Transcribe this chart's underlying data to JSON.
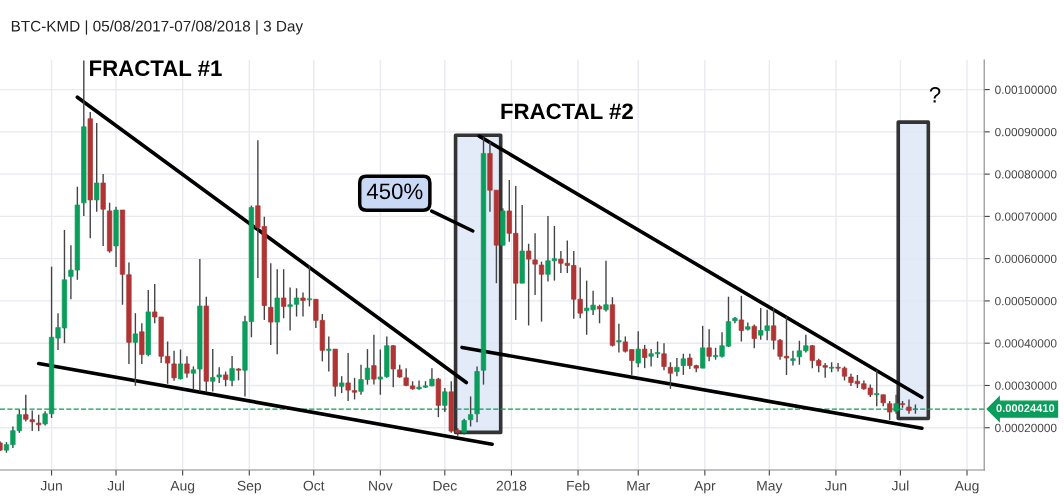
{
  "chart_data": {
    "type": "candlestick",
    "title": "BTC-KMD | 05/08/2017-07/08/2018 | 3 Day",
    "x": [
      "2017-05-08",
      "2017-05-11",
      "2017-05-14",
      "2017-05-17",
      "2017-05-20",
      "2017-05-23",
      "2017-05-26",
      "2017-05-29",
      "2017-06-01",
      "2017-06-04",
      "2017-06-07",
      "2017-06-10",
      "2017-06-13",
      "2017-06-16",
      "2017-06-19",
      "2017-06-22",
      "2017-06-25",
      "2017-06-28",
      "2017-07-01",
      "2017-07-04",
      "2017-07-07",
      "2017-07-10",
      "2017-07-13",
      "2017-07-16",
      "2017-07-19",
      "2017-07-22",
      "2017-07-25",
      "2017-07-28",
      "2017-07-31",
      "2017-08-03",
      "2017-08-06",
      "2017-08-09",
      "2017-08-12",
      "2017-08-15",
      "2017-08-18",
      "2017-08-21",
      "2017-08-24",
      "2017-08-27",
      "2017-08-30",
      "2017-09-02",
      "2017-09-05",
      "2017-09-08",
      "2017-09-11",
      "2017-09-14",
      "2017-09-17",
      "2017-09-20",
      "2017-09-23",
      "2017-09-26",
      "2017-09-29",
      "2017-10-02",
      "2017-10-05",
      "2017-10-08",
      "2017-10-11",
      "2017-10-14",
      "2017-10-17",
      "2017-10-20",
      "2017-10-23",
      "2017-10-26",
      "2017-10-29",
      "2017-11-01",
      "2017-11-04",
      "2017-11-07",
      "2017-11-10",
      "2017-11-13",
      "2017-11-16",
      "2017-11-19",
      "2017-11-22",
      "2017-11-25",
      "2017-11-28",
      "2017-12-01",
      "2017-12-04",
      "2017-12-07",
      "2017-12-10",
      "2017-12-13",
      "2017-12-16",
      "2017-12-19",
      "2017-12-22",
      "2017-12-25",
      "2017-12-28",
      "2017-12-31",
      "2018-01-03",
      "2018-01-06",
      "2018-01-09",
      "2018-01-12",
      "2018-01-15",
      "2018-01-18",
      "2018-01-21",
      "2018-01-24",
      "2018-01-27",
      "2018-01-30",
      "2018-02-02",
      "2018-02-05",
      "2018-02-08",
      "2018-02-11",
      "2018-02-14",
      "2018-02-17",
      "2018-02-20",
      "2018-02-23",
      "2018-02-26",
      "2018-03-01",
      "2018-03-04",
      "2018-03-07",
      "2018-03-10",
      "2018-03-13",
      "2018-03-16",
      "2018-03-19",
      "2018-03-22",
      "2018-03-25",
      "2018-03-28",
      "2018-03-31",
      "2018-04-03",
      "2018-04-06",
      "2018-04-09",
      "2018-04-12",
      "2018-04-15",
      "2018-04-18",
      "2018-04-21",
      "2018-04-24",
      "2018-04-27",
      "2018-04-30",
      "2018-05-03",
      "2018-05-06",
      "2018-05-09",
      "2018-05-12",
      "2018-05-15",
      "2018-05-18",
      "2018-05-21",
      "2018-05-24",
      "2018-05-27",
      "2018-05-30",
      "2018-06-02",
      "2018-06-05",
      "2018-06-08",
      "2018-06-11",
      "2018-06-14",
      "2018-06-17",
      "2018-06-20",
      "2018-06-23",
      "2018-06-26",
      "2018-06-29",
      "2018-07-02",
      "2018-07-05",
      "2018-07-08"
    ],
    "ohlc": [
      [
        0.000164,
        0.000168,
        0.000145,
        0.000147
      ],
      [
        0.000147,
        0.000166,
        0.000141,
        0.00016
      ],
      [
        0.00016,
        0.000203,
        0.000152,
        0.000193
      ],
      [
        0.000193,
        0.000243,
        0.000188,
        0.000231
      ],
      [
        0.000231,
        0.000278,
        0.000215,
        0.00022
      ],
      [
        0.000219,
        0.000241,
        0.000192,
        0.000214
      ],
      [
        0.000211,
        0.000231,
        0.000192,
        0.000207
      ],
      [
        0.000209,
        0.000239,
        0.000205,
        0.000233
      ],
      [
        0.000233,
        0.000581,
        0.000223,
        0.000414
      ],
      [
        0.000412,
        0.000471,
        0.000384,
        0.000437
      ],
      [
        0.000436,
        0.000668,
        0.0004,
        0.00055
      ],
      [
        0.000558,
        0.000632,
        0.000504,
        0.000573
      ],
      [
        0.000573,
        0.00077,
        0.00055,
        0.000727
      ],
      [
        0.000732,
        0.001069,
        0.000701,
        0.000912
      ],
      [
        0.000931,
        0.000947,
        0.000648,
        0.000739
      ],
      [
        0.000739,
        0.000921,
        0.000711,
        0.000779
      ],
      [
        0.000779,
        0.0008,
        0.00063,
        0.000717
      ],
      [
        0.000713,
        0.000732,
        0.000614,
        0.000618
      ],
      [
        0.00063,
        0.000723,
        0.00058,
        0.000715
      ],
      [
        0.000715,
        0.000715,
        0.000491,
        0.000563
      ],
      [
        0.000562,
        0.000591,
        0.000351,
        0.000402
      ],
      [
        0.000402,
        0.000471,
        0.000299,
        0.000422
      ],
      [
        0.000427,
        0.000447,
        0.000351,
        0.000373
      ],
      [
        0.000373,
        0.000526,
        0.000369,
        0.000474
      ],
      [
        0.000474,
        0.00054,
        0.000447,
        0.000462
      ],
      [
        0.000462,
        0.000462,
        0.000353,
        0.000369
      ],
      [
        0.000369,
        0.000404,
        0.000304,
        0.000353
      ],
      [
        0.000351,
        0.000382,
        0.000311,
        0.000318
      ],
      [
        0.000316,
        0.000385,
        0.000314,
        0.000351
      ],
      [
        0.000351,
        0.000369,
        0.000318,
        0.000329
      ],
      [
        0.000329,
        0.000345,
        0.00029,
        0.000337
      ],
      [
        0.000339,
        0.000599,
        0.000286,
        0.000488
      ],
      [
        0.000488,
        0.00051,
        0.000284,
        0.00031
      ],
      [
        0.00031,
        0.000386,
        0.000286,
        0.000319
      ],
      [
        0.00032,
        0.000343,
        0.000306,
        0.000325
      ],
      [
        0.000325,
        0.000333,
        0.000298,
        0.000314
      ],
      [
        0.000312,
        0.00037,
        0.000298,
        0.00034
      ],
      [
        0.000339,
        0.000341,
        0.000312,
        0.000336
      ],
      [
        0.000336,
        0.000465,
        0.000274,
        0.000451
      ],
      [
        0.000451,
        0.000726,
        0.000414,
        0.000721
      ],
      [
        0.000725,
        0.00088,
        0.000554,
        0.000674
      ],
      [
        0.000676,
        0.000699,
        0.000455,
        0.000489
      ],
      [
        0.000485,
        0.000589,
        0.000396,
        0.00045
      ],
      [
        0.00045,
        0.000575,
        0.000374,
        0.000507
      ],
      [
        0.000507,
        0.000575,
        0.000459,
        0.000487
      ],
      [
        0.000487,
        0.000532,
        0.00043,
        0.000491
      ],
      [
        0.000492,
        0.00053,
        0.000463,
        0.000507
      ],
      [
        0.000507,
        0.00052,
        0.000463,
        0.000501
      ],
      [
        0.000503,
        0.000585,
        0.000487,
        0.000505
      ],
      [
        0.000504,
        0.000504,
        0.000436,
        0.000454
      ],
      [
        0.000454,
        0.000469,
        0.000357,
        0.000383
      ],
      [
        0.000383,
        0.000416,
        0.000333,
        0.000386
      ],
      [
        0.000386,
        0.000386,
        0.000274,
        0.000298
      ],
      [
        0.000298,
        0.000322,
        0.000282,
        0.000306
      ],
      [
        0.000306,
        0.000377,
        0.000263,
        0.000289
      ],
      [
        0.000288,
        0.000318,
        0.000267,
        0.000284
      ],
      [
        0.000286,
        0.000349,
        0.000278,
        0.000314
      ],
      [
        0.000314,
        0.000386,
        0.000302,
        0.000341
      ],
      [
        0.000347,
        0.00042,
        0.000302,
        0.000315
      ],
      [
        0.000315,
        0.000385,
        0.000278,
        0.00032
      ],
      [
        0.000321,
        0.000416,
        0.000318,
        0.000394
      ],
      [
        0.000394,
        0.000396,
        0.000296,
        0.000339
      ],
      [
        0.000337,
        0.000349,
        0.000318,
        0.00032
      ],
      [
        0.000318,
        0.000341,
        0.000298,
        0.0003
      ],
      [
        0.000299,
        0.00031,
        0.00029,
        0.000292
      ],
      [
        0.000292,
        0.000312,
        0.00029,
        0.000296
      ],
      [
        0.000296,
        0.00031,
        0.000294,
        0.000299
      ],
      [
        0.000299,
        0.000341,
        0.000298,
        0.000315
      ],
      [
        0.000315,
        0.000318,
        0.000225,
        0.000253
      ],
      [
        0.000253,
        0.000294,
        0.000237,
        0.000285
      ],
      [
        0.000285,
        0.00031,
        0.000188,
        0.000192
      ],
      [
        0.000194,
        0.000199,
        0.000181,
        0.000189
      ],
      [
        0.000189,
        0.000221,
        0.000184,
        0.000217
      ],
      [
        0.000219,
        0.000274,
        0.000203,
        0.000231
      ],
      [
        0.000233,
        0.000345,
        0.000213,
        0.000333
      ],
      [
        0.000336,
        0.000887,
        0.000302,
        0.000849
      ],
      [
        0.000849,
        0.000876,
        0.000711,
        0.000762
      ],
      [
        0.000762,
        0.000762,
        0.000542,
        0.000632
      ],
      [
        0.000632,
        0.000719,
        0.000632,
        0.000713
      ],
      [
        0.000713,
        0.000786,
        0.00064,
        0.00066
      ],
      [
        0.00066,
        0.000772,
        0.000455,
        0.000542
      ],
      [
        0.000542,
        0.000727,
        0.000542,
        0.000618
      ],
      [
        0.000618,
        0.000635,
        0.000442,
        0.000599
      ],
      [
        0.000597,
        0.00066,
        0.000514,
        0.000587
      ],
      [
        0.000585,
        0.000593,
        0.000451,
        0.000563
      ],
      [
        0.000563,
        0.000701,
        0.000546,
        0.000595
      ],
      [
        0.000595,
        0.000677,
        0.000548,
        0.0006
      ],
      [
        0.000599,
        0.000618,
        0.000566,
        0.000589
      ],
      [
        0.000589,
        0.000643,
        0.000566,
        0.000584
      ],
      [
        0.000584,
        0.000618,
        0.000458,
        0.000504
      ],
      [
        0.000504,
        0.000579,
        0.000459,
        0.000471
      ],
      [
        0.000477,
        0.000548,
        0.00042,
        0.000483
      ],
      [
        0.000479,
        0.000524,
        0.000467,
        0.00049
      ],
      [
        0.000487,
        0.000491,
        0.000447,
        0.000481
      ],
      [
        0.000479,
        0.000595,
        0.000475,
        0.000491
      ],
      [
        0.000491,
        0.000509,
        0.000392,
        0.000395
      ],
      [
        0.000403,
        0.000446,
        0.000378,
        0.000406
      ],
      [
        0.000403,
        0.000416,
        0.000378,
        0.000381
      ],
      [
        0.000385,
        0.000385,
        0.000325,
        0.000359
      ],
      [
        0.000353,
        0.000428,
        0.000343,
        0.000386
      ],
      [
        0.000386,
        0.000396,
        0.000341,
        0.000366
      ],
      [
        0.000369,
        0.000386,
        0.000345,
        0.000375
      ],
      [
        0.000375,
        0.000404,
        0.000365,
        0.000378
      ],
      [
        0.000375,
        0.0004,
        0.000336,
        0.000345
      ],
      [
        0.000343,
        0.000355,
        0.000292,
        0.000329
      ],
      [
        0.000333,
        0.000365,
        0.000322,
        0.000343
      ],
      [
        0.000347,
        0.000375,
        0.000325,
        0.000363
      ],
      [
        0.000365,
        0.000375,
        0.000339,
        0.000347
      ],
      [
        0.000347,
        0.000349,
        0.000331,
        0.000341
      ],
      [
        0.000341,
        0.000441,
        0.000341,
        0.000389
      ],
      [
        0.000389,
        0.000433,
        0.000357,
        0.000369
      ],
      [
        0.000368,
        0.000389,
        0.000361,
        0.000371
      ],
      [
        0.000369,
        0.000426,
        0.000366,
        0.000394
      ],
      [
        0.000393,
        0.00051,
        0.000391,
        0.000451
      ],
      [
        0.000453,
        0.000462,
        0.000447,
        0.000459
      ],
      [
        0.000455,
        0.000512,
        0.000404,
        0.00043
      ],
      [
        0.000433,
        0.000449,
        0.00043,
        0.000439
      ],
      [
        0.00044,
        0.000444,
        0.000388,
        0.000411
      ],
      [
        0.000419,
        0.000483,
        0.000408,
        0.00043
      ],
      [
        0.00043,
        0.000479,
        0.000407,
        0.000441
      ],
      [
        0.000441,
        0.000483,
        0.000385,
        0.000407
      ],
      [
        0.000407,
        0.00041,
        0.000361,
        0.000369
      ],
      [
        0.000369,
        0.000463,
        0.000325,
        0.000365
      ],
      [
        0.000359,
        0.000382,
        0.000347,
        0.000363
      ],
      [
        0.000368,
        0.000406,
        0.000349,
        0.000382
      ],
      [
        0.000382,
        0.00042,
        0.000378,
        0.000394
      ],
      [
        0.000394,
        0.000396,
        0.000341,
        0.000359
      ],
      [
        0.000359,
        0.000363,
        0.000331,
        0.000347
      ],
      [
        0.000347,
        0.000353,
        0.000318,
        0.000343
      ],
      [
        0.000341,
        0.000355,
        0.000331,
        0.000343
      ],
      [
        0.000343,
        0.000353,
        0.000333,
        0.000341
      ],
      [
        0.000341,
        0.000345,
        0.000312,
        0.000322
      ],
      [
        0.00032,
        0.000328,
        0.000299,
        0.000307
      ],
      [
        0.00031,
        0.000325,
        0.000294,
        0.000304
      ],
      [
        0.000304,
        0.000312,
        0.00029,
        0.000292
      ],
      [
        0.000294,
        0.000302,
        0.000273,
        0.000278
      ],
      [
        0.000278,
        0.000336,
        0.000251,
        0.000281
      ],
      [
        0.000278,
        0.000278,
        0.000251,
        0.000259
      ],
      [
        0.000257,
        0.000263,
        0.000218,
        0.000237
      ],
      [
        0.000239,
        0.000278,
        0.000233,
        0.000257
      ],
      [
        0.000257,
        0.000263,
        0.000247,
        0.000255
      ],
      [
        0.000249,
        0.000267,
        0.000233,
        0.000241
      ],
      [
        0.000243,
        0.000255,
        0.000233,
        0.000244
      ]
    ],
    "series": [
      {
        "type": "area",
        "color": "#dfe8f8",
        "x": [
          "2017-12-06",
          "2017-12-06",
          "2017-12-27",
          "2017-12-27",
          "2017-12-06"
        ],
        "values": [
          0.000189,
          0.000892,
          0.000892,
          0.000189,
          0.000189
        ]
      },
      {
        "type": "area",
        "color": "#dfe8f8",
        "x": [
          "2018-06-30",
          "2018-06-30",
          "2018-07-14",
          "2018-07-14",
          "2018-06-30"
        ],
        "values": [
          0.000222,
          0.000923,
          0.000923,
          0.000222,
          0.000222
        ]
      },
      {
        "type": "line",
        "color": "#000000",
        "x": [
          "2017-06-13",
          "2017-12-11"
        ],
        "values": [
          0.000982,
          0.000307
        ]
      },
      {
        "type": "line",
        "color": "#000000",
        "x": [
          "2017-05-26",
          "2017-12-23"
        ],
        "values": [
          0.000352,
          0.000161
        ]
      },
      {
        "type": "line",
        "color": "#000000",
        "x": [
          "2017-12-17",
          "2018-07-11"
        ],
        "values": [
          0.00089,
          0.000272
        ]
      },
      {
        "type": "line",
        "color": "#000000",
        "x": [
          "2017-12-09",
          "2018-07-11"
        ],
        "values": [
          0.00039,
          0.000199
        ]
      }
    ],
    "xlim": [
      "2017-05-08",
      "2018-08-09"
    ],
    "ylim": [
      0.0001,
      0.00107
    ],
    "xticks": [
      {
        "value": "2017-06-01",
        "label": "Jun"
      },
      {
        "value": "2017-07-01",
        "label": "Jul"
      },
      {
        "value": "2017-08-01",
        "label": "Aug"
      },
      {
        "value": "2017-09-01",
        "label": "Sep"
      },
      {
        "value": "2017-10-01",
        "label": "Oct"
      },
      {
        "value": "2017-11-01",
        "label": "Nov"
      },
      {
        "value": "2017-12-01",
        "label": "Dec"
      },
      {
        "value": "2018-01-01",
        "label": "2018"
      },
      {
        "value": "2018-02-01",
        "label": "Feb"
      },
      {
        "value": "2018-03-01",
        "label": "Mar"
      },
      {
        "value": "2018-04-01",
        "label": "Apr"
      },
      {
        "value": "2018-05-01",
        "label": "May"
      },
      {
        "value": "2018-06-01",
        "label": "Jun"
      },
      {
        "value": "2018-07-01",
        "label": "Jul"
      },
      {
        "value": "2018-08-01",
        "label": "Aug"
      }
    ],
    "yticks": [
      {
        "value": 0.0002,
        "label": "0.00020000"
      },
      {
        "value": 0.0003,
        "label": "0.00030000"
      },
      {
        "value": 0.0004,
        "label": "0.00040000"
      },
      {
        "value": 0.0005,
        "label": "0.00050000"
      },
      {
        "value": 0.0006,
        "label": "0.00060000"
      },
      {
        "value": 0.0007,
        "label": "0.00070000"
      },
      {
        "value": 0.0008,
        "label": "0.00080000"
      },
      {
        "value": 0.0009,
        "label": "0.00090000"
      },
      {
        "value": 0.001,
        "label": "0.00100000"
      }
    ],
    "grid": true,
    "ref_lines": [
      {
        "axis": "y",
        "value": 0.0002441,
        "label": "0.00024410",
        "color": "#0a9d5b",
        "line_style": "dashed"
      }
    ],
    "annotations": [
      "FRACTAL #1",
      "FRACTAL #2",
      "450%",
      "?"
    ]
  }
}
